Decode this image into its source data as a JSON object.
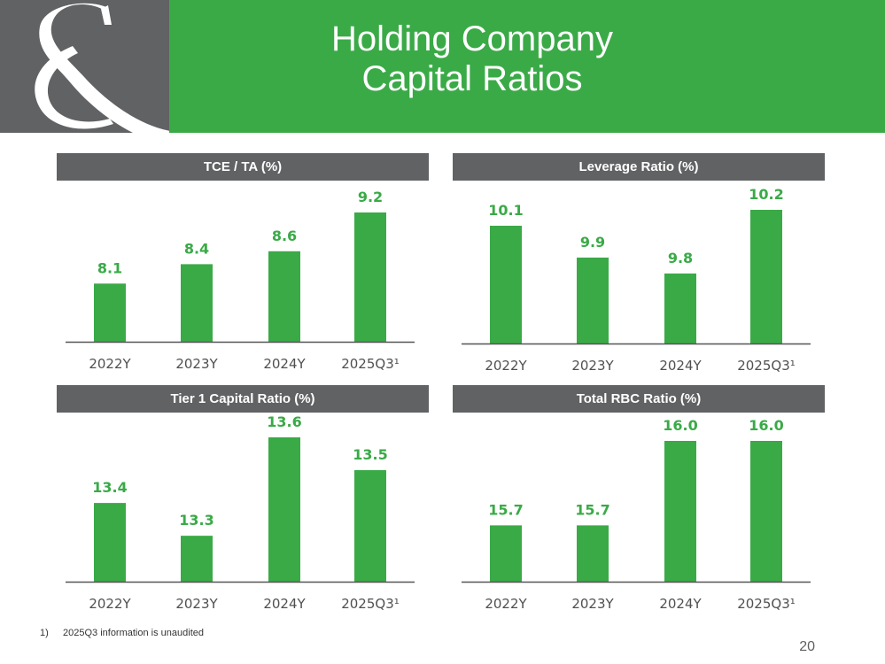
{
  "header": {
    "title_line1": "Holding Company",
    "title_line2": "Capital Ratios",
    "brand_color": "#3aaa47",
    "logo_color": "#616264",
    "logo_icon": "ampersand-icon"
  },
  "chart_data": [
    {
      "type": "bar",
      "title": "TCE / TA (%)",
      "categories": [
        "2022Y",
        "2023Y",
        "2024Y",
        "2025Q3¹"
      ],
      "values": [
        8.1,
        8.4,
        8.6,
        9.2
      ],
      "labels": [
        "8.1",
        "8.4",
        "8.6",
        "9.2"
      ],
      "ylim": [
        7.2,
        9.2
      ],
      "color": "#3aaa47"
    },
    {
      "type": "bar",
      "title": "Leverage Ratio (%)",
      "categories": [
        "2022Y",
        "2023Y",
        "2024Y",
        "2025Q3¹"
      ],
      "values": [
        10.1,
        9.9,
        9.8,
        10.2
      ],
      "labels": [
        "10.1",
        "9.9",
        "9.8",
        "10.2"
      ],
      "ylim": [
        9.36,
        10.2
      ],
      "color": "#3aaa47"
    },
    {
      "type": "bar",
      "title": "Tier 1 Capital Ratio (%)",
      "categories": [
        "2022Y",
        "2023Y",
        "2024Y",
        "2025Q3¹"
      ],
      "values": [
        13.4,
        13.3,
        13.6,
        13.5
      ],
      "labels": [
        "13.4",
        "13.3",
        "13.6",
        "13.5"
      ],
      "ylim": [
        13.16,
        13.6
      ],
      "color": "#3aaa47"
    },
    {
      "type": "bar",
      "title": "Total RBC Ratio (%)",
      "categories": [
        "2022Y",
        "2023Y",
        "2024Y",
        "2025Q3¹"
      ],
      "values": [
        15.7,
        15.7,
        16.0,
        16.0
      ],
      "labels": [
        "15.7",
        "15.7",
        "16.0",
        "16.0"
      ],
      "ylim": [
        15.5,
        16.0
      ],
      "color": "#3aaa47"
    }
  ],
  "footnote": {
    "number": "1)",
    "text": "2025Q3 information is unaudited"
  },
  "page_number": "20"
}
